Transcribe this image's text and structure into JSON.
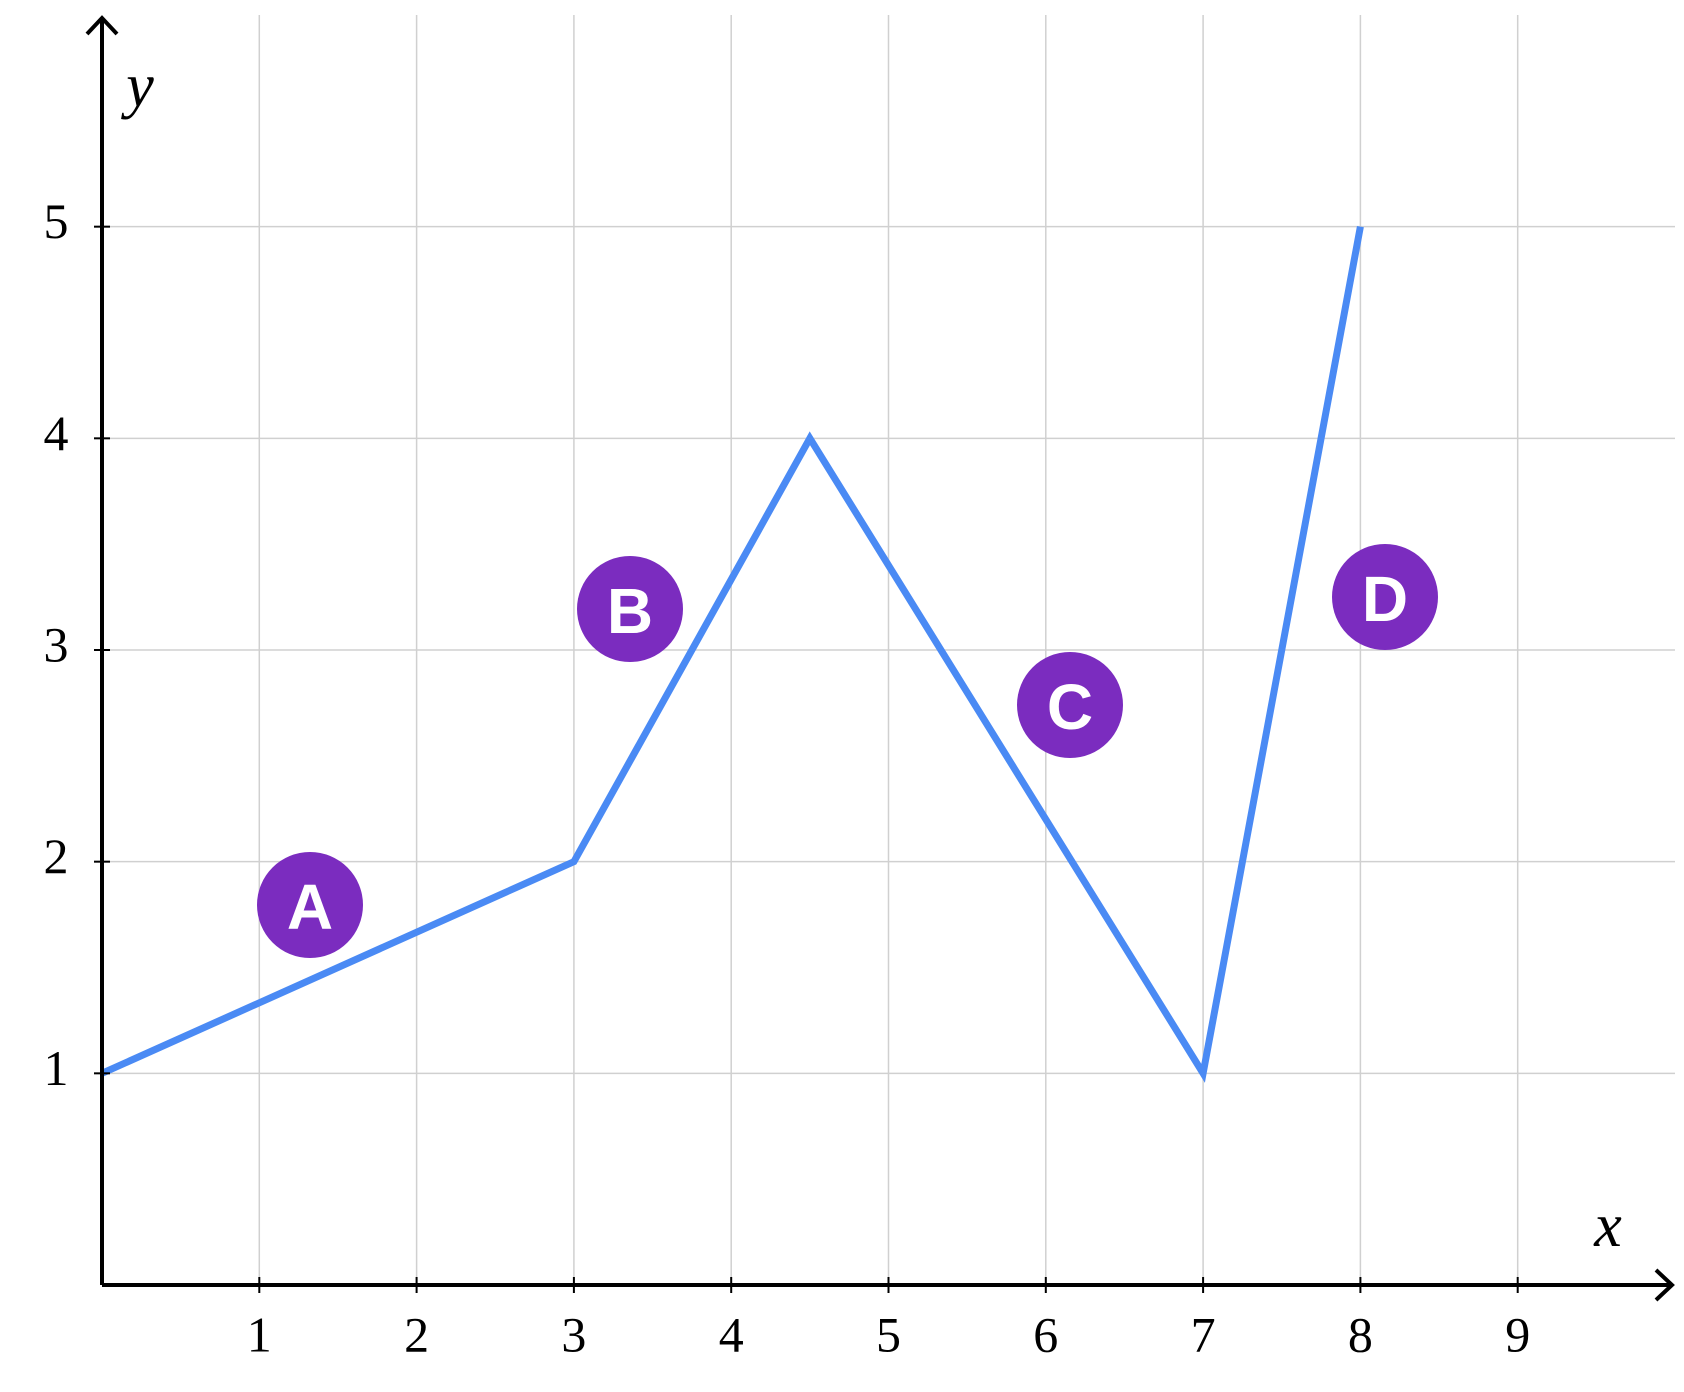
{
  "chart_data": {
    "type": "line",
    "x_label": "x",
    "y_label": "y",
    "x": [
      0,
      3,
      4.5,
      7,
      8
    ],
    "series": [
      {
        "color": "#4a8af4",
        "values": [
          1,
          2,
          4,
          1,
          5
        ]
      }
    ],
    "xlim": [
      0,
      10
    ],
    "ylim": [
      0,
      6
    ],
    "xticks": [
      1,
      2,
      3,
      4,
      5,
      6,
      7,
      8,
      9
    ],
    "yticks": [
      1,
      2,
      3,
      4,
      5
    ],
    "grid": true,
    "annotations": [
      "A",
      "B",
      "C",
      "D"
    ]
  }
}
